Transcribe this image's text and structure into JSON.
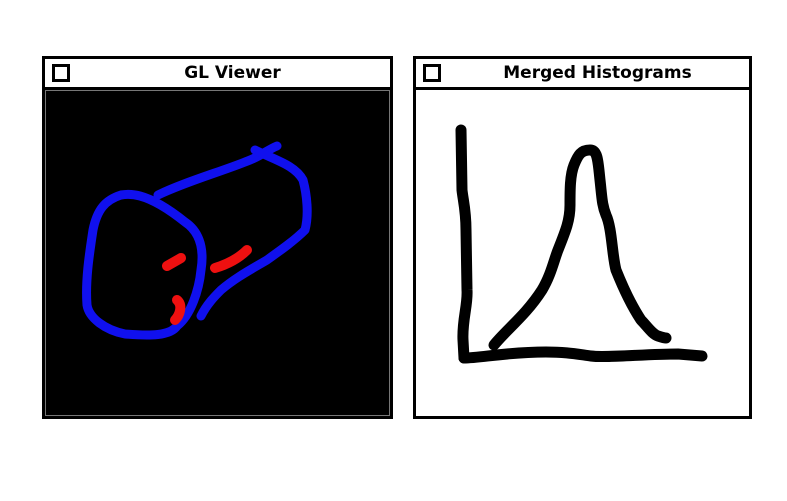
{
  "windows": {
    "gl_viewer": {
      "title": "GL Viewer",
      "content_background": "#000000",
      "drawing_colors": {
        "outline": "#1010ee",
        "marks": "#ee1010"
      }
    },
    "merged_histograms": {
      "title": "Merged Histograms",
      "content_background": "#ffffff",
      "stroke_color": "#000000"
    }
  }
}
